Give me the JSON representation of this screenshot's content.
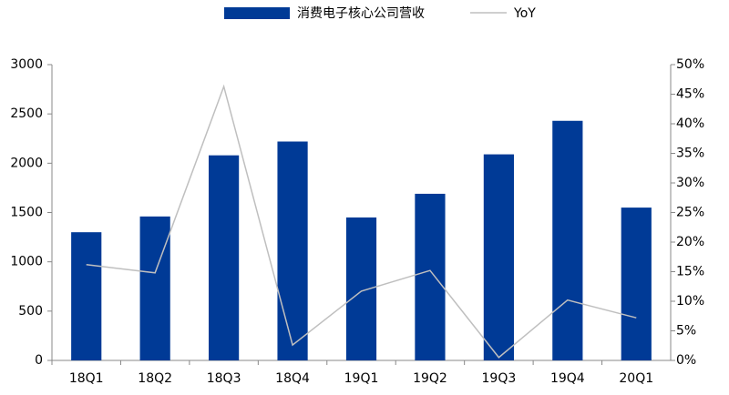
{
  "chart_data": {
    "type": "bar-line",
    "categories": [
      "18Q1",
      "18Q2",
      "18Q3",
      "18Q4",
      "19Q1",
      "19Q2",
      "19Q3",
      "19Q4",
      "20Q1"
    ],
    "series": [
      {
        "name": "消费电子核心公司营收",
        "type": "bar",
        "color": "#003a96",
        "values": [
          1300,
          1460,
          2080,
          2220,
          1450,
          1690,
          2090,
          2430,
          1550
        ]
      },
      {
        "name": "YoY",
        "type": "line",
        "axis": "y2",
        "color": "#bfbfbf",
        "values": [
          16.2,
          14.8,
          46.3,
          2.6,
          11.7,
          15.2,
          0.5,
          10.2,
          7.2
        ]
      }
    ],
    "ylim": [
      0,
      3000
    ],
    "yticks": [
      0,
      500,
      1000,
      1500,
      2000,
      2500,
      3000
    ],
    "y2lim": [
      0,
      50
    ],
    "y2ticks": [
      {
        "value": 0,
        "label": "0%"
      },
      {
        "value": 5,
        "label": "5%"
      },
      {
        "value": 10,
        "label": "10%"
      },
      {
        "value": 15,
        "label": "15%"
      },
      {
        "value": 20,
        "label": "20%"
      },
      {
        "value": 25,
        "label": "25%"
      },
      {
        "value": 30,
        "label": "30%"
      },
      {
        "value": 35,
        "label": "35%"
      },
      {
        "value": 40,
        "label": "40%"
      },
      {
        "value": 45,
        "label": "45%"
      },
      {
        "value": 50,
        "label": "50%"
      }
    ],
    "legend": "top"
  }
}
